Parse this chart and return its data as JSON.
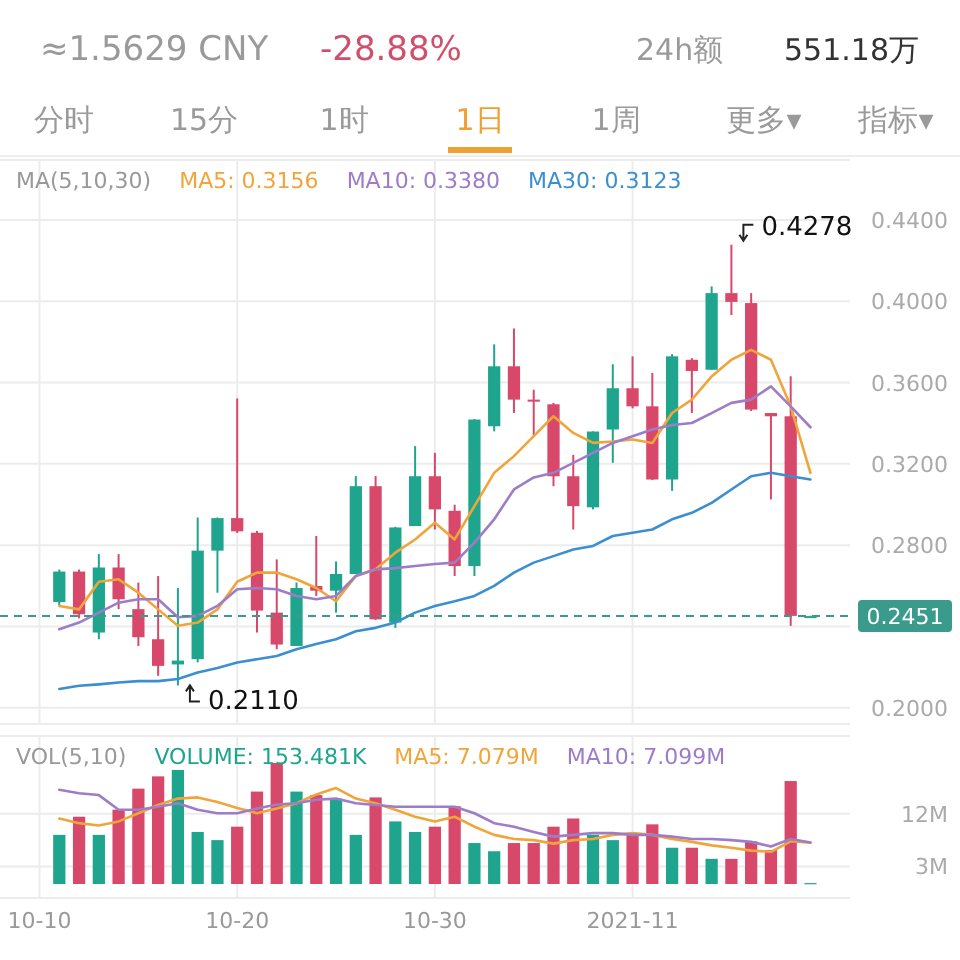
{
  "chart_data": [
    {
      "type": "other",
      "annotations": [
        "≈1.5629 CNY",
        "-28.88%",
        "24h额",
        "551.18万",
        "分时",
        "15分",
        "1时",
        "1日",
        "1周",
        "更多▾",
        "指标▾"
      ]
    },
    {
      "type": "candlestick",
      "legend_title": "MA(5,10,30)",
      "legend": "top",
      "grid": true,
      "tick_labels": "y",
      "x": [
        "2021-10-11",
        "2021-10-12",
        "2021-10-13",
        "2021-10-14",
        "2021-10-15",
        "2021-10-16",
        "2021-10-17",
        "2021-10-18",
        "2021-10-19",
        "2021-10-20",
        "2021-10-21",
        "2021-10-22",
        "2021-10-23",
        "2021-10-24",
        "2021-10-25",
        "2021-10-26",
        "2021-10-27",
        "2021-10-28",
        "2021-10-29",
        "2021-10-30",
        "2021-10-31",
        "2021-11-01",
        "2021-11-02",
        "2021-11-03",
        "2021-11-04",
        "2021-11-05",
        "2021-11-06",
        "2021-11-07",
        "2021-11-08",
        "2021-11-09",
        "2021-11-10",
        "2021-11-11",
        "2021-11-12",
        "2021-11-13",
        "2021-11-14",
        "2021-11-15",
        "2021-11-16",
        "2021-11-17",
        "2021-11-18"
      ],
      "xlim": [
        "2021-10-08T00:00",
        "2021-11-20T00:00"
      ],
      "xticks": [
        {
          "value": "2021-10-10",
          "label": null
        },
        {
          "value": "2021-10-20",
          "label": null
        },
        {
          "value": "2021-10-30",
          "label": null
        },
        {
          "value": "2021-11-09",
          "label": null
        }
      ],
      "ylim": [
        0.192,
        0.4695
      ],
      "yticks": [
        {
          "value": 0.2,
          "label": "0.2000"
        },
        {
          "value": 0.24,
          "label": null
        },
        {
          "value": 0.28,
          "label": "0.2800"
        },
        {
          "value": 0.32,
          "label": "0.3200"
        },
        {
          "value": 0.36,
          "label": "0.3600"
        },
        {
          "value": 0.4,
          "label": "0.4000"
        },
        {
          "value": 0.44,
          "label": "0.4400"
        }
      ],
      "ref_lines": [
        {
          "axis": "y",
          "value": 0.2451,
          "label": "0.2451",
          "color": "#3a9b8c",
          "line_style": "dashed"
        }
      ],
      "annotations": [
        {
          "text": "0.4278",
          "x": "2021-11-14",
          "y": 0.4278
        },
        {
          "text": "0.2110",
          "x": "2021-10-17",
          "y": 0.211
        }
      ],
      "ohlc": [
        [
          0.252,
          0.268,
          0.25,
          0.267
        ],
        [
          0.267,
          0.268,
          0.244,
          0.246
        ],
        [
          0.237,
          0.2756,
          0.2337,
          0.269
        ],
        [
          0.269,
          0.2756,
          0.2485,
          0.2534
        ],
        [
          0.2485,
          0.2616,
          0.2304,
          0.2347
        ],
        [
          0.2337,
          0.2648,
          0.2157,
          0.2206
        ],
        [
          0.2213,
          0.2589,
          0.211,
          0.2232
        ],
        [
          0.2239,
          0.2936,
          0.2223,
          0.2773
        ],
        [
          0.2773,
          0.2936,
          0.2566,
          0.2933
        ],
        [
          0.2933,
          0.3522,
          0.286,
          0.2868
        ],
        [
          0.2861,
          0.287,
          0.237,
          0.2478
        ],
        [
          0.2468,
          0.273,
          0.2288,
          0.2311
        ],
        [
          0.2304,
          0.2616,
          0.2304,
          0.2589
        ],
        [
          0.2599,
          0.2845,
          0.255,
          0.2576
        ],
        [
          0.2576,
          0.272,
          0.2468,
          0.2658
        ],
        [
          0.2658,
          0.314,
          0.2658,
          0.309
        ],
        [
          0.309,
          0.314,
          0.2432,
          0.2435
        ],
        [
          0.2419,
          0.289,
          0.2393,
          0.2887
        ],
        [
          0.2894,
          0.3287,
          0.2894,
          0.3139
        ],
        [
          0.3139,
          0.3254,
          0.2877,
          0.2976
        ],
        [
          0.2969,
          0.2999,
          0.2648,
          0.2697
        ],
        [
          0.2697,
          0.342,
          0.2648,
          0.3418
        ],
        [
          0.3385,
          0.3788,
          0.336,
          0.368
        ],
        [
          0.368,
          0.3866,
          0.345,
          0.3516
        ],
        [
          0.3516,
          0.3565,
          0.3342,
          0.3506
        ],
        [
          0.3493,
          0.35,
          0.309,
          0.3139
        ],
        [
          0.3139,
          0.3244,
          0.2877,
          0.2992
        ],
        [
          0.2986,
          0.336,
          0.2976,
          0.3359
        ],
        [
          0.3369,
          0.369,
          0.3205,
          0.3572
        ],
        [
          0.3572,
          0.3729,
          0.3473,
          0.3483
        ],
        [
          0.3483,
          0.3647,
          0.312,
          0.3123
        ],
        [
          0.3123,
          0.374,
          0.3067,
          0.3729
        ],
        [
          0.3712,
          0.372,
          0.345,
          0.3657
        ],
        [
          0.3663,
          0.4073,
          0.3663,
          0.404
        ],
        [
          0.404,
          0.4278,
          0.3932,
          0.3997
        ],
        [
          0.3991,
          0.404,
          0.346,
          0.3467
        ],
        [
          0.345,
          0.345,
          0.3025,
          0.3434
        ],
        [
          0.3434,
          0.3631,
          0.2403,
          0.2452
        ],
        [
          0.2449,
          0.2453,
          0.2449,
          0.2451
        ]
      ],
      "colors": [
        "#1fa58d",
        "#d8486a",
        "#1fa58d",
        "#d8486a",
        "#d8486a",
        "#d8486a",
        "#1fa58d",
        "#1fa58d",
        "#1fa58d",
        "#d8486a",
        "#d8486a",
        "#d8486a",
        "#1fa58d",
        "#d8486a",
        "#1fa58d",
        "#1fa58d",
        "#d8486a",
        "#1fa58d",
        "#1fa58d",
        "#d8486a",
        "#d8486a",
        "#1fa58d",
        "#1fa58d",
        "#d8486a",
        "#d8486a",
        "#d8486a",
        "#d8486a",
        "#1fa58d",
        "#1fa58d",
        "#d8486a",
        "#d8486a",
        "#1fa58d",
        "#d8486a",
        "#1fa58d",
        "#d8486a",
        "#d8486a",
        "#d8486a",
        "#d8486a",
        "#1fa58d"
      ],
      "series": [
        {
          "type": "line",
          "name": "MA5: 0.3156",
          "color": "#f0a53a",
          "values": [
            0.2501,
            0.2484,
            0.262,
            0.2632,
            0.2566,
            0.2484,
            0.2403,
            0.2419,
            0.2484,
            0.262,
            0.2665,
            0.2665,
            0.2632,
            0.2589,
            0.2524,
            0.2648,
            0.2681,
            0.2763,
            0.2828,
            0.291,
            0.2828,
            0.2992,
            0.3156,
            0.3238,
            0.3336,
            0.3434,
            0.3352,
            0.3303,
            0.331,
            0.332,
            0.3303,
            0.345,
            0.3516,
            0.363,
            0.3712,
            0.3761,
            0.3712,
            0.3483,
            0.3156
          ]
        },
        {
          "type": "line",
          "name": "MA10: 0.3380",
          "color": "#9d7cc8",
          "values": [
            0.2386,
            0.2419,
            0.2468,
            0.2517,
            0.2534,
            0.2534,
            0.2445,
            0.2452,
            0.2501,
            0.2583,
            0.2589,
            0.2583,
            0.255,
            0.2534,
            0.255,
            0.2648,
            0.2681,
            0.2687,
            0.2697,
            0.2707,
            0.2714,
            0.2812,
            0.2927,
            0.3074,
            0.3133,
            0.3156,
            0.3205,
            0.3254,
            0.3303,
            0.3336,
            0.3369,
            0.3391,
            0.3401,
            0.345,
            0.35,
            0.3516,
            0.3581,
            0.3483,
            0.338
          ]
        },
        {
          "type": "line",
          "name": "MA30: 0.3123",
          "color": "#3b8fd0",
          "values": [
            0.2092,
            0.2108,
            0.2115,
            0.2124,
            0.2131,
            0.2131,
            0.2141,
            0.2173,
            0.2196,
            0.2223,
            0.2239,
            0.2255,
            0.2288,
            0.2314,
            0.2337,
            0.2376,
            0.2393,
            0.2419,
            0.2468,
            0.2501,
            0.2524,
            0.255,
            0.26,
            0.2665,
            0.2714,
            0.2746,
            0.2779,
            0.2796,
            0.2845,
            0.2861,
            0.2877,
            0.2927,
            0.2959,
            0.3008,
            0.3074,
            0.3139,
            0.3156,
            0.3139,
            0.3123
          ]
        }
      ]
    },
    {
      "type": "bar",
      "legend_title": "VOL(5,10)",
      "legend": "top left",
      "grid": true,
      "x": [
        "2021-10-11",
        "2021-10-12",
        "2021-10-13",
        "2021-10-14",
        "2021-10-15",
        "2021-10-16",
        "2021-10-17",
        "2021-10-18",
        "2021-10-19",
        "2021-10-20",
        "2021-10-21",
        "2021-10-22",
        "2021-10-23",
        "2021-10-24",
        "2021-10-25",
        "2021-10-26",
        "2021-10-27",
        "2021-10-28",
        "2021-10-29",
        "2021-10-30",
        "2021-10-31",
        "2021-11-01",
        "2021-11-02",
        "2021-11-03",
        "2021-11-04",
        "2021-11-05",
        "2021-11-06",
        "2021-11-07",
        "2021-11-08",
        "2021-11-09",
        "2021-11-10",
        "2021-11-11",
        "2021-11-12",
        "2021-11-13",
        "2021-11-14",
        "2021-11-15",
        "2021-11-16",
        "2021-11-17",
        "2021-11-18"
      ],
      "xlim": [
        "2021-10-08T00:00",
        "2021-11-20T00:00"
      ],
      "xticks": [
        {
          "value": "2021-10-10",
          "label": "10-10"
        },
        {
          "value": "2021-10-20",
          "label": "10-20"
        },
        {
          "value": "2021-10-30",
          "label": "10-30"
        },
        {
          "value": "2021-11-09",
          "label": "2021-11"
        }
      ],
      "ylim": [
        0,
        25.3
      ],
      "yticks": [
        {
          "value": 3,
          "label": "3M"
        },
        {
          "value": 12,
          "label": "12M"
        }
      ],
      "series": [
        {
          "name": "VOLUME: 153.481K",
          "colors": [
            "#1fa58d",
            "#d8486a",
            "#1fa58d",
            "#d8486a",
            "#d8486a",
            "#d8486a",
            "#1fa58d",
            "#1fa58d",
            "#1fa58d",
            "#d8486a",
            "#d8486a",
            "#d8486a",
            "#1fa58d",
            "#d8486a",
            "#1fa58d",
            "#1fa58d",
            "#d8486a",
            "#1fa58d",
            "#1fa58d",
            "#d8486a",
            "#d8486a",
            "#1fa58d",
            "#1fa58d",
            "#d8486a",
            "#d8486a",
            "#d8486a",
            "#d8486a",
            "#1fa58d",
            "#1fa58d",
            "#d8486a",
            "#d8486a",
            "#1fa58d",
            "#d8486a",
            "#1fa58d",
            "#d8486a",
            "#d8486a",
            "#d8486a",
            "#d8486a",
            "#1fa58d"
          ],
          "values": [
            8.4,
            11.5,
            8.4,
            12.7,
            16.3,
            18.4,
            19.5,
            8.9,
            7.5,
            9.8,
            15.8,
            20.7,
            15.8,
            15.2,
            14.6,
            8.4,
            14.8,
            10.7,
            8.9,
            9.8,
            13.3,
            7.0,
            5.6,
            7.0,
            7.0,
            9.8,
            11.2,
            8.4,
            7.5,
            8.4,
            10.2,
            6.2,
            6.2,
            4.3,
            4.3,
            7.3,
            5.8,
            17.6,
            0.153481
          ]
        },
        {
          "type": "line",
          "name": "MA5: 7.079M",
          "color": "#f0a53a",
          "values": [
            11.2,
            10.4,
            10.0,
            10.7,
            12.1,
            13.5,
            14.6,
            14.8,
            14.0,
            13.0,
            12.1,
            12.9,
            13.8,
            15.3,
            16.4,
            14.6,
            13.8,
            12.7,
            11.5,
            10.7,
            11.5,
            9.8,
            8.4,
            7.7,
            7.5,
            6.9,
            7.5,
            7.7,
            8.4,
            8.7,
            8.4,
            7.7,
            7.2,
            6.6,
            6.2,
            5.7,
            5.5,
            7.3,
            7.079
          ]
        },
        {
          "type": "line",
          "name": "MA10: 7.099M",
          "color": "#9d7cc8",
          "values": [
            16.1,
            15.5,
            15.2,
            12.7,
            12.7,
            13.2,
            13.8,
            12.7,
            12.1,
            12.1,
            12.9,
            13.6,
            13.8,
            14.4,
            14.6,
            13.8,
            13.5,
            13.2,
            13.2,
            13.2,
            13.2,
            12.1,
            10.4,
            9.8,
            8.9,
            8.1,
            8.4,
            8.7,
            8.7,
            8.4,
            8.4,
            8.1,
            7.7,
            7.7,
            7.5,
            7.2,
            6.4,
            7.7,
            7.099
          ]
        }
      ]
    }
  ]
}
